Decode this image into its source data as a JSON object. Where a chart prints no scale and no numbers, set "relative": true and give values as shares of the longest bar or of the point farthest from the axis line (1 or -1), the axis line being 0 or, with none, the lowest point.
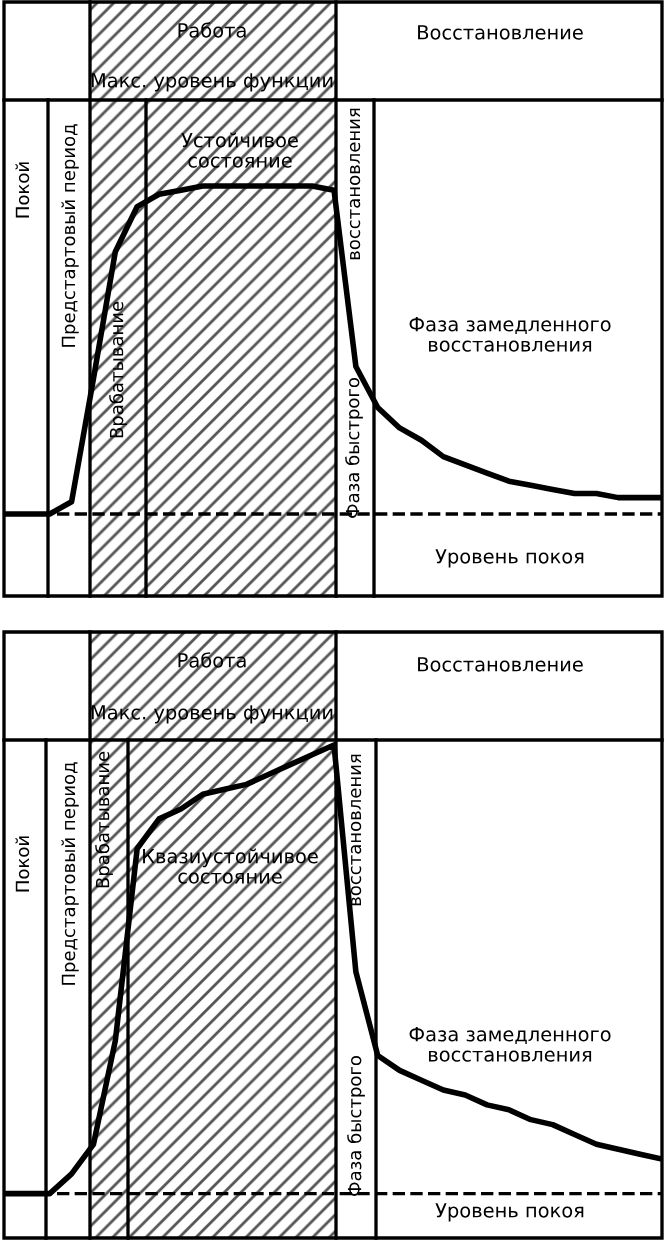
{
  "chart_data": [
    {
      "type": "line",
      "relative": true,
      "line_style": "solid",
      "categories": [
        null,
        null,
        null,
        null,
        null,
        null,
        null,
        null,
        null,
        null,
        null,
        null,
        null,
        null,
        null,
        null,
        null,
        null,
        null,
        null,
        null,
        null,
        null,
        null,
        null,
        null,
        null,
        null,
        null,
        null,
        null
      ],
      "annotations": [
        "Работа",
        "Восстановление",
        "Макс. уровень функции",
        "Покой",
        "Предстартовый период",
        "Врабатывание",
        "Устойчивое состояние",
        "восстановления",
        "Фаза быстрого",
        "Фаза замедленного восстановления"
      ],
      "series": [
        {
          "color": "#000000",
          "values": [
            0.2,
            0.2,
            0.2,
            0.23,
            0.53,
            0.84,
            0.95,
            0.98,
            0.99,
            1,
            1,
            1,
            1,
            1,
            1,
            0.99,
            0.56,
            0.46,
            0.41,
            0.38,
            0.34,
            0.32,
            0.3,
            0.28,
            0.27,
            0.26,
            0.25,
            0.25,
            0.24,
            0.24,
            0.24
          ]
        }
      ],
      "ref_lines": [
        {
          "axis": "y",
          "value": 0.2,
          "label": "Уровень покоя",
          "line_style": "dashed"
        }
      ]
    },
    {
      "type": "line",
      "relative": true,
      "line_style": "solid",
      "categories": [
        null,
        null,
        null,
        null,
        null,
        null,
        null,
        null,
        null,
        null,
        null,
        null,
        null,
        null,
        null,
        null,
        null,
        null,
        null,
        null,
        null,
        null,
        null,
        null,
        null,
        null,
        null,
        null,
        null,
        null,
        null
      ],
      "annotations": [
        "Работа",
        "Восстановление",
        "Макс. уровень функции",
        "Покой",
        "Предстартовый период",
        "Врабатывание",
        "Квазиустойчивое состояние",
        "восстановления",
        "Фаза быстрого",
        "Фаза замедленного восстановления"
      ],
      "series": [
        {
          "color": "#000000",
          "values": [
            0.09,
            0.09,
            0.09,
            0.13,
            0.19,
            0.4,
            0.79,
            0.85,
            0.87,
            0.9,
            0.91,
            0.92,
            0.94,
            0.96,
            0.98,
            1,
            0.54,
            0.37,
            0.34,
            0.32,
            0.3,
            0.29,
            0.27,
            0.26,
            0.24,
            0.23,
            0.21,
            0.19,
            0.18,
            0.17,
            0.16
          ]
        }
      ],
      "ref_lines": [
        {
          "axis": "y",
          "value": 0.09,
          "label": "Уровень покоя",
          "line_style": "dashed"
        }
      ]
    }
  ]
}
